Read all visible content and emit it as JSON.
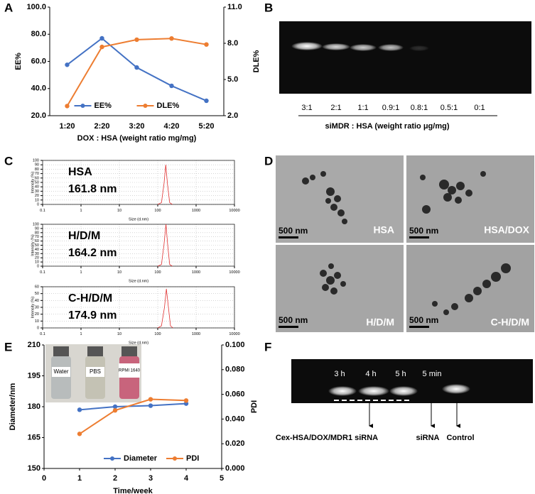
{
  "figure": {
    "panel_labels": [
      "A",
      "B",
      "C",
      "D",
      "E",
      "F"
    ],
    "gel_b": {
      "lanes": [
        "3:1",
        "2:1",
        "1:1",
        "0.9:1",
        "0.8:1",
        "0.5:1",
        "0:1"
      ],
      "xlabel": "siMDR : HSA (weight ratio μg/mg)"
    },
    "tem": {
      "labels": [
        "HSA",
        "HSA/DOX",
        "H/D/M",
        "C-H/D/M"
      ],
      "scale": "500 nm"
    },
    "inset_e": {
      "labels": [
        "Water",
        "PBS",
        "RPMI 1640"
      ]
    },
    "gel_f": {
      "lanes": [
        "3 h",
        "4 h",
        "5 h",
        "5 min"
      ],
      "labels": [
        "Cex-HSA/DOX/MDR1 siRNA",
        "siRNA",
        "Control"
      ]
    }
  },
  "chart_data": [
    {
      "type": "line",
      "categories": [
        "1:20",
        "2:20",
        "3:20",
        "4:20",
        "5:20"
      ],
      "series": [
        {
          "name": "EE%",
          "color": "#4472c4",
          "values": [
            57.5,
            77,
            55.5,
            42,
            31
          ]
        },
        {
          "name": "DLE%",
          "color": "#ed7d31",
          "axis": "y2",
          "values": [
            2.8,
            7.7,
            8.3,
            8.4,
            7.9
          ]
        }
      ],
      "ylim": [
        20,
        100
      ],
      "yticks": [
        {
          "value": 20,
          "label": "20.0"
        },
        {
          "value": 40,
          "label": "40.0"
        },
        {
          "value": 60,
          "label": "60.0"
        },
        {
          "value": 80,
          "label": "80.0"
        },
        {
          "value": 100,
          "label": "100.0"
        }
      ],
      "y2lim": [
        2,
        11
      ],
      "y2ticks": [
        {
          "value": 2,
          "label": "2.0"
        },
        {
          "value": 5,
          "label": "5.0"
        },
        {
          "value": 8,
          "label": "8.0"
        },
        {
          "value": 11,
          "label": "11.0"
        }
      ],
      "xlabel": "DOX : HSA (weight ratio mg/mg)",
      "ylabel": "EE%",
      "y2label": "DLE%",
      "legend": "lower center",
      "markers": true
    },
    {
      "type": "line",
      "x": [
        100,
        125,
        145,
        162,
        180,
        205,
        240
      ],
      "xscale": "log",
      "series": [
        {
          "color": "#e03030",
          "values": [
            0,
            4,
            45,
            90,
            45,
            4,
            0
          ]
        }
      ],
      "xlim": [
        0.1,
        10000
      ],
      "xticks": [
        0.1,
        1,
        10,
        100,
        1000,
        10000
      ],
      "ylim": [
        0,
        100
      ],
      "yticks": [
        0,
        10,
        20,
        30,
        40,
        50,
        60,
        70,
        80,
        90,
        100
      ],
      "xlabel": "Size (d.nm)",
      "ylabel": "Intensity (%)",
      "grid": true,
      "annotations": [
        "HSA",
        "161.8 nm"
      ]
    },
    {
      "type": "line",
      "x": [
        100,
        125,
        145,
        164,
        182,
        205,
        240
      ],
      "xscale": "log",
      "series": [
        {
          "color": "#e03030",
          "values": [
            0,
            4,
            50,
            100,
            50,
            4,
            0
          ]
        }
      ],
      "xlim": [
        0.1,
        10000
      ],
      "xticks": [
        0.1,
        1,
        10,
        100,
        1000,
        10000
      ],
      "ylim": [
        0,
        100
      ],
      "yticks": [
        0,
        10,
        20,
        30,
        40,
        50,
        60,
        70,
        80,
        90,
        100
      ],
      "xlabel": "Size (d.nm)",
      "ylabel": "Intensity (%)",
      "grid": true,
      "annotations": [
        "H/D/M",
        "164.2 nm"
      ]
    },
    {
      "type": "line",
      "x": [
        100,
        125,
        150,
        168,
        190,
        215,
        250
      ],
      "xscale": "log",
      "series": [
        {
          "color": "#e03030",
          "values": [
            0,
            3,
            30,
            57,
            30,
            3,
            0
          ]
        }
      ],
      "xlim": [
        0.1,
        10000
      ],
      "xticks": [
        0.1,
        1,
        10,
        100,
        1000,
        10000
      ],
      "ylim": [
        0,
        60
      ],
      "yticks": [
        0,
        10,
        20,
        30,
        40,
        50,
        60
      ],
      "xlabel": "Size (d.nm)",
      "ylabel": "Intensity (%)",
      "grid": true,
      "annotations": [
        "C-H/D/M",
        "174.9 nm"
      ]
    },
    {
      "type": "line",
      "x": [
        1,
        2,
        3,
        4
      ],
      "series": [
        {
          "name": "Diameter",
          "color": "#4472c4",
          "values": [
            178.5,
            180,
            180.5,
            181.5
          ]
        },
        {
          "name": "PDI",
          "color": "#ed7d31",
          "axis": "y2",
          "values": [
            0.028,
            0.047,
            0.056,
            0.055
          ]
        }
      ],
      "xlim": [
        0,
        5
      ],
      "xticks": [
        0,
        1,
        2,
        3,
        4,
        5
      ],
      "ylim": [
        150,
        210
      ],
      "yticks": [
        150,
        165,
        180,
        195,
        210
      ],
      "y2lim": [
        0,
        0.1
      ],
      "y2ticks": [
        {
          "value": 0,
          "label": "0.000"
        },
        {
          "value": 0.02,
          "label": "0.020"
        },
        {
          "value": 0.04,
          "label": "0.040"
        },
        {
          "value": 0.06,
          "label": "0.060"
        },
        {
          "value": 0.08,
          "label": "0.080"
        },
        {
          "value": 0.1,
          "label": "0.100"
        }
      ],
      "xlabel": "Time/week",
      "ylabel": "Diameter/nm",
      "y2label": "PDI",
      "legend": "lower right",
      "markers": true
    }
  ]
}
